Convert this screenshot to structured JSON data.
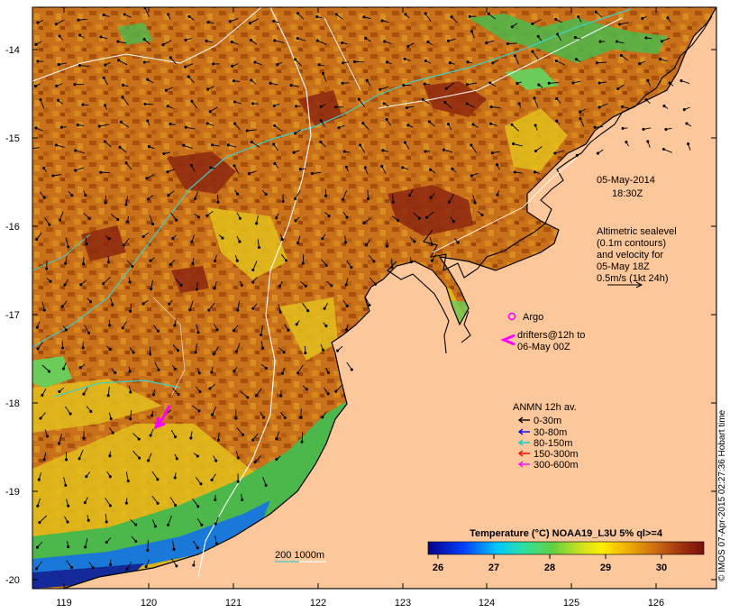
{
  "map": {
    "lat_ticks": [
      "-14",
      "-15",
      "-16",
      "-17",
      "-18",
      "-19",
      "-20"
    ],
    "lon_ticks": [
      "119",
      "120",
      "121",
      "122",
      "123",
      "124",
      "125",
      "126"
    ]
  },
  "annotation": {
    "date": "05-May-2014",
    "time": "18:30Z",
    "altimetry": [
      "Altimetric sealevel",
      "(0.1m contours)",
      "and velocity for",
      "05-May 18Z",
      "0.5m/s (1kt 24h)"
    ],
    "argo_label": "Argo",
    "drifters": [
      "drifters@12h to",
      "06-May 00Z"
    ]
  },
  "legend": {
    "title": "ANMN 12h av.",
    "items": [
      {
        "label": "0-30m",
        "color": "#000000"
      },
      {
        "label": "30-80m",
        "color": "#0000ff"
      },
      {
        "label": "80-150m",
        "color": "#00cccc"
      },
      {
        "label": "150-300m",
        "color": "#ff0000"
      },
      {
        "label": "300-600m",
        "color": "#ff00ff"
      }
    ]
  },
  "depth_label": "200  1000m",
  "colorbar": {
    "title": "Temperature (°C) NOAA19_L3U 5% ql>=4",
    "ticks": [
      "26",
      "27",
      "28",
      "29",
      "30"
    ]
  },
  "credit": "© IMOS 07-Apr-2015 02:27:36 Hobart time",
  "colors": {
    "land": "#fcc79a",
    "warm": "#c86a10",
    "hot": "#8a1e08",
    "cool": "#e2c21a",
    "cold": "#5ac85a",
    "bathy_cyan": "#40d0c8"
  }
}
